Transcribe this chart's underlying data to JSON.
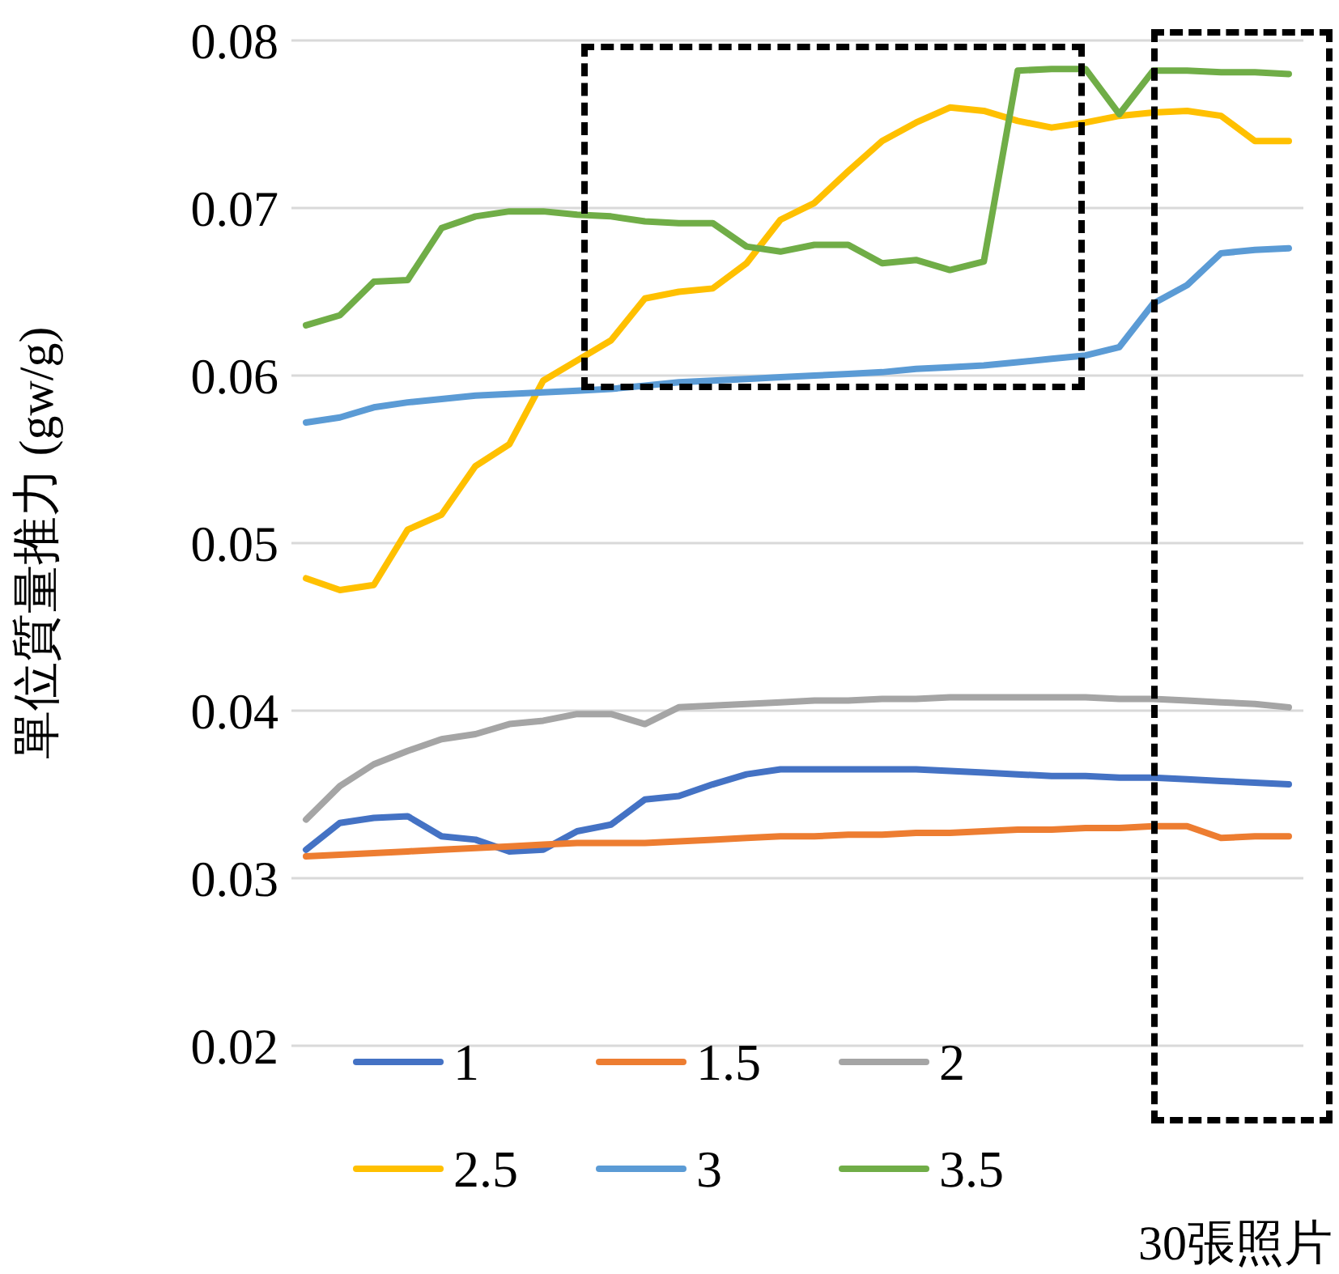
{
  "chart_data": {
    "type": "line",
    "ylabel": "單位質量推力 (gw/g)",
    "annotations": [
      "30張照片"
    ],
    "categories": [
      null,
      null,
      null,
      null,
      null,
      null,
      null,
      null,
      null,
      null,
      null,
      null,
      null,
      null,
      null,
      null,
      null,
      null,
      null,
      null,
      null,
      null,
      null,
      null,
      null,
      null,
      null,
      null,
      null,
      null
    ],
    "series": [
      {
        "name": "1",
        "color": "#4472c4",
        "values": [
          0.0317,
          0.0333,
          0.0336,
          0.0337,
          0.0325,
          0.0323,
          0.0316,
          0.0317,
          0.0328,
          0.0332,
          0.0347,
          0.0349,
          0.0356,
          0.0362,
          0.0365,
          0.0365,
          0.0365,
          0.0365,
          0.0365,
          0.0364,
          0.0363,
          0.0362,
          0.0361,
          0.0361,
          0.036,
          0.036,
          0.0359,
          0.0358,
          0.0357,
          0.0356
        ]
      },
      {
        "name": "1.5",
        "color": "#ed7d31",
        "values": [
          0.0313,
          0.0314,
          0.0315,
          0.0316,
          0.0317,
          0.0318,
          0.0319,
          0.032,
          0.0321,
          0.0321,
          0.0321,
          0.0322,
          0.0323,
          0.0324,
          0.0325,
          0.0325,
          0.0326,
          0.0326,
          0.0327,
          0.0327,
          0.0328,
          0.0329,
          0.0329,
          0.033,
          0.033,
          0.0331,
          0.0331,
          0.0324,
          0.0325,
          0.0325
        ]
      },
      {
        "name": "2",
        "color": "#a5a5a5",
        "values": [
          0.0335,
          0.0355,
          0.0368,
          0.0376,
          0.0383,
          0.0386,
          0.0392,
          0.0394,
          0.0398,
          0.0398,
          0.0392,
          0.0402,
          0.0403,
          0.0404,
          0.0405,
          0.0406,
          0.0406,
          0.0407,
          0.0407,
          0.0408,
          0.0408,
          0.0408,
          0.0408,
          0.0408,
          0.0407,
          0.0407,
          0.0406,
          0.0405,
          0.0404,
          0.0402
        ]
      },
      {
        "name": "2.5",
        "color": "#ffc000",
        "values": [
          0.0479,
          0.0472,
          0.0475,
          0.0508,
          0.0517,
          0.0546,
          0.0559,
          0.0597,
          0.0609,
          0.0621,
          0.0646,
          0.065,
          0.0652,
          0.0667,
          0.0693,
          0.0703,
          0.0722,
          0.074,
          0.0751,
          0.076,
          0.0758,
          0.0752,
          0.0748,
          0.0751,
          0.0755,
          0.0757,
          0.0758,
          0.0755,
          0.074,
          0.074
        ]
      },
      {
        "name": "3",
        "color": "#5b9bd5",
        "values": [
          0.0572,
          0.0575,
          0.0581,
          0.0584,
          0.0586,
          0.0588,
          0.0589,
          0.059,
          0.0591,
          0.0592,
          0.0594,
          0.0596,
          0.0597,
          0.0598,
          0.0599,
          0.06,
          0.0601,
          0.0602,
          0.0604,
          0.0605,
          0.0606,
          0.0608,
          0.061,
          0.0612,
          0.0617,
          0.0643,
          0.0654,
          0.0673,
          0.0675,
          0.0676
        ]
      },
      {
        "name": "3.5",
        "color": "#70ad47",
        "values": [
          0.063,
          0.0636,
          0.0656,
          0.0657,
          0.0688,
          0.0695,
          0.0698,
          0.0698,
          0.0696,
          0.0695,
          0.0692,
          0.0691,
          0.0691,
          0.0677,
          0.0674,
          0.0678,
          0.0678,
          0.0667,
          0.0669,
          0.0663,
          0.0668,
          0.0782,
          0.0783,
          0.0783,
          0.0756,
          0.0782,
          0.0782,
          0.0781,
          0.0781,
          0.078
        ]
      }
    ],
    "ylim": [
      0.02,
      0.08
    ],
    "yticks": [
      0.02,
      0.03,
      0.04,
      0.05,
      0.06,
      0.07,
      0.08
    ],
    "grid": "y",
    "legend": "bottom",
    "marker": "none",
    "line_style": "solid",
    "tick_labels": "y"
  }
}
